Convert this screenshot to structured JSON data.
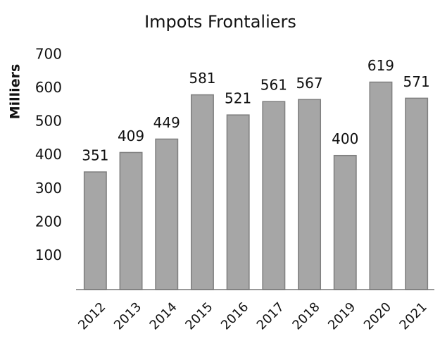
{
  "chart_data": {
    "type": "bar",
    "title": "Impots Frontaliers",
    "y_label": "Milliers",
    "categories": [
      "2012",
      "2013",
      "2014",
      "2015",
      "2016",
      "2017",
      "2018",
      "2019",
      "2020",
      "2021"
    ],
    "values": [
      351,
      409,
      449,
      581,
      521,
      561,
      567,
      400,
      619,
      571
    ],
    "color": "#a6a6a6",
    "edge_color": "#7f7f7f",
    "ylim": [
      0,
      700
    ],
    "yticks": [
      100,
      200,
      300,
      400,
      500,
      600,
      700
    ],
    "grid": false,
    "value_labels_shown": true
  }
}
